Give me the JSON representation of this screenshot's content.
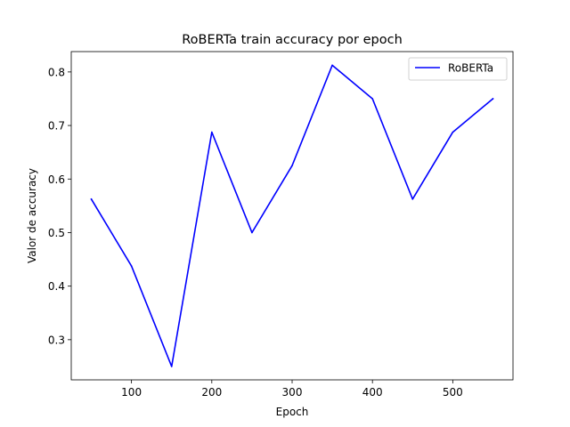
{
  "chart_data": {
    "type": "line",
    "title": "RoBERTa train accuracy por epoch",
    "xlabel": "Epoch",
    "ylabel": "Valor de accuracy",
    "xlim": [
      25,
      575
    ],
    "ylim": [
      0.225,
      0.838
    ],
    "xticks": [
      100,
      200,
      300,
      400,
      500
    ],
    "yticks": [
      0.3,
      0.4,
      0.5,
      0.6,
      0.7,
      0.8
    ],
    "xtick_labels": [
      "100",
      "200",
      "300",
      "400",
      "500"
    ],
    "ytick_labels": [
      "0.3",
      "0.4",
      "0.5",
      "0.6",
      "0.7",
      "0.8"
    ],
    "grid": false,
    "legend_position": "top-right",
    "x": [
      50,
      100,
      150,
      200,
      250,
      300,
      350,
      400,
      450,
      500,
      550
    ],
    "series": [
      {
        "name": "RoBERTa",
        "color": "#0000ff",
        "values": [
          0.5625,
          0.4375,
          0.25,
          0.6875,
          0.5,
          0.625,
          0.8125,
          0.75,
          0.5625,
          0.6875,
          0.75
        ]
      }
    ]
  }
}
